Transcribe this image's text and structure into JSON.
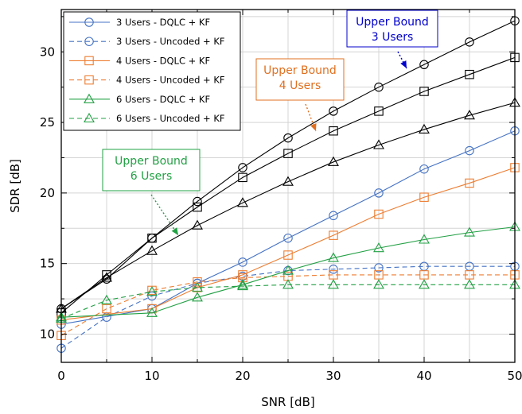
{
  "chart_data": {
    "type": "line",
    "xlabel": "SNR [dB]",
    "ylabel": "SDR [dB]",
    "xlim": [
      0,
      50
    ],
    "ylim": [
      8,
      33
    ],
    "xticks": [
      0,
      10,
      20,
      30,
      40,
      50
    ],
    "yticks": [
      10,
      15,
      20,
      25,
      30
    ],
    "grid": true,
    "legend_position": "top-left",
    "series": [
      {
        "name": "3 Users - DQLC + KF",
        "color": "#4472c4",
        "dash": "solid",
        "marker": "circle",
        "x": [
          0,
          10,
          15,
          20,
          25,
          30,
          35,
          40,
          45,
          50
        ],
        "y": [
          10.7,
          11.8,
          13.6,
          15.1,
          16.8,
          18.4,
          20.0,
          21.7,
          23.0,
          24.4
        ]
      },
      {
        "name": "3 Users - Uncoded + KF",
        "color": "#4472c4",
        "dash": "dashed",
        "marker": "circle",
        "x": [
          0,
          5,
          10,
          15,
          20,
          25,
          30,
          35,
          40,
          45,
          50
        ],
        "y": [
          9.0,
          11.2,
          12.7,
          13.6,
          14.1,
          14.5,
          14.6,
          14.7,
          14.8,
          14.8,
          14.8
        ]
      },
      {
        "name": "4 Users - DQLC + KF",
        "color": "#ed7d31",
        "dash": "solid",
        "marker": "square",
        "x": [
          0,
          10,
          15,
          20,
          25,
          30,
          35,
          40,
          45,
          50
        ],
        "y": [
          11.0,
          11.8,
          13.3,
          14.2,
          15.6,
          17.0,
          18.5,
          19.7,
          20.7,
          21.8
        ]
      },
      {
        "name": "4 Users - Uncoded + KF",
        "color": "#ed7d31",
        "dash": "dashed",
        "marker": "square",
        "x": [
          0,
          5,
          10,
          15,
          20,
          25,
          30,
          35,
          40,
          45,
          50
        ],
        "y": [
          9.9,
          11.8,
          13.1,
          13.7,
          14.0,
          14.1,
          14.2,
          14.2,
          14.2,
          14.2,
          14.2
        ]
      },
      {
        "name": "6 Users - DQLC + KF",
        "color": "#22a044",
        "dash": "solid",
        "marker": "triangle",
        "x": [
          0,
          10,
          15,
          20,
          25,
          30,
          35,
          40,
          45,
          50
        ],
        "y": [
          11.2,
          11.5,
          12.6,
          13.5,
          14.5,
          15.4,
          16.1,
          16.7,
          17.2,
          17.6
        ]
      },
      {
        "name": "6 Users - Uncoded + KF",
        "color": "#22a044",
        "dash": "dashed",
        "marker": "triangle",
        "x": [
          0,
          5,
          10,
          15,
          20,
          25,
          30,
          35,
          40,
          45,
          50
        ],
        "y": [
          11.1,
          12.4,
          13.0,
          13.3,
          13.4,
          13.5,
          13.5,
          13.5,
          13.5,
          13.5,
          13.5
        ]
      }
    ],
    "upper_bounds": [
      {
        "label": "Upper Bound 3 Users",
        "color": "#000000",
        "marker": "circle",
        "x": [
          0,
          5,
          10,
          15,
          20,
          25,
          30,
          35,
          40,
          45,
          50
        ],
        "y": [
          11.8,
          13.9,
          16.8,
          19.4,
          21.8,
          23.9,
          25.8,
          27.5,
          29.1,
          30.7,
          32.2
        ]
      },
      {
        "label": "Upper Bound 4 Users",
        "color": "#000000",
        "marker": "square",
        "x": [
          0,
          5,
          10,
          15,
          20,
          25,
          30,
          35,
          40,
          45,
          50
        ],
        "y": [
          11.5,
          14.2,
          16.8,
          19.0,
          21.1,
          22.8,
          24.4,
          25.8,
          27.2,
          28.4,
          29.6
        ]
      },
      {
        "label": "Upper Bound 6 Users",
        "color": "#000000",
        "marker": "triangle",
        "x": [
          0,
          5,
          10,
          15,
          20,
          25,
          30,
          35,
          40,
          45,
          50
        ],
        "y": [
          11.8,
          14.0,
          15.9,
          17.7,
          19.3,
          20.8,
          22.2,
          23.4,
          24.5,
          25.5,
          26.4
        ]
      }
    ],
    "annotations": [
      {
        "lines": [
          "Upper Bound",
          "3 Users"
        ],
        "color": "#0000cc",
        "points_to": "Upper Bound 3 Users"
      },
      {
        "lines": [
          "Upper Bound",
          "4 Users"
        ],
        "color": "#e07020",
        "points_to": "Upper Bound 4 Users"
      },
      {
        "lines": [
          "Upper Bound",
          "6 Users"
        ],
        "color": "#22a044",
        "points_to": "Upper Bound 6 Users"
      }
    ]
  }
}
